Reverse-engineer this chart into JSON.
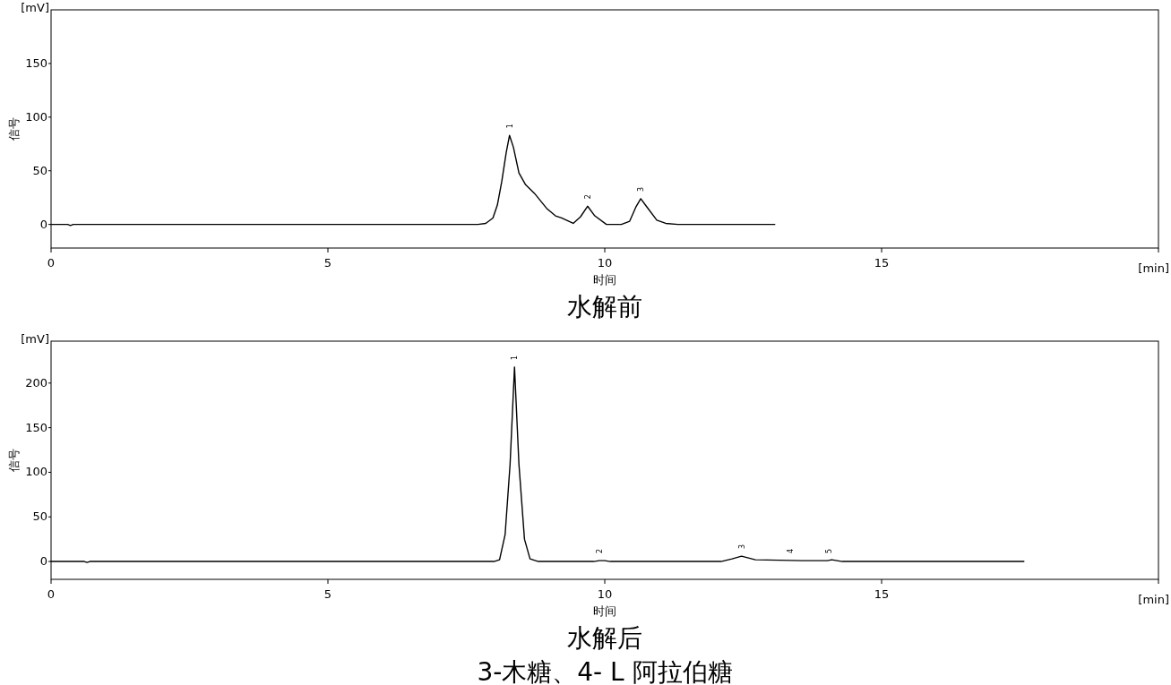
{
  "chart_data": [
    {
      "type": "line",
      "title": "水解前",
      "xlabel": "时间",
      "ylabel": "信号",
      "xlim": [
        0,
        20
      ],
      "ylim": [
        -22,
        200
      ],
      "xticks": [
        0,
        5,
        10,
        15,
        {
          "value": 20,
          "label": null
        }
      ],
      "yticks": [
        0,
        50,
        100,
        150
      ],
      "series": [
        {
          "color": "#000000",
          "x": [
            0,
            0.3,
            0.35,
            0.4,
            7.6,
            7.71,
            7.85,
            7.98,
            8.06,
            8.14,
            8.22,
            8.28,
            8.35,
            8.45,
            8.57,
            8.73,
            8.95,
            9.11,
            9.22,
            9.43,
            9.56,
            9.69,
            9.82,
            10.03,
            10.3,
            10.45,
            10.56,
            10.65,
            10.75,
            10.94,
            11.1,
            11.32,
            13.07
          ],
          "values": [
            0,
            0,
            -1,
            0,
            0,
            0,
            1,
            6,
            18,
            40,
            67,
            83,
            72,
            48,
            37,
            29,
            15,
            8,
            6,
            1,
            7,
            17,
            8,
            0,
            0,
            3,
            16,
            24,
            17,
            4,
            1,
            0,
            0
          ]
        }
      ],
      "annotations": [
        "[mV]",
        "[min]",
        {
          "text": "1",
          "x": 8.28,
          "y": 83
        },
        {
          "text": "2",
          "x": 9.69,
          "y": 17
        },
        {
          "text": "3",
          "x": 10.65,
          "y": 24
        }
      ]
    },
    {
      "type": "line",
      "title": "水解后",
      "xlabel": "时间",
      "ylabel": "信号",
      "xlim": [
        0,
        20
      ],
      "ylim": [
        -20,
        247
      ],
      "xticks": [
        0,
        5,
        10,
        15,
        {
          "value": 20,
          "label": null
        }
      ],
      "yticks": [
        0,
        50,
        100,
        150,
        200
      ],
      "series": [
        {
          "color": "#000000",
          "x": [
            0,
            0.6,
            0.65,
            0.7,
            8.0,
            8.1,
            8.2,
            8.29,
            8.37,
            8.45,
            8.55,
            8.65,
            8.8,
            9.8,
            9.9,
            10.0,
            10.1,
            12.1,
            12.3,
            12.47,
            12.72,
            13.56,
            14.02,
            14.1,
            14.29,
            17.57
          ],
          "values": [
            0,
            0,
            -1,
            0,
            0,
            2,
            30,
            109,
            218,
            109,
            25,
            3,
            0,
            0,
            1,
            1,
            0,
            0,
            3,
            6,
            2,
            1,
            1,
            2,
            0,
            0
          ]
        }
      ],
      "annotations": [
        "[mV]",
        "[min]",
        "3-木糖、4- L 阿拉伯糖",
        {
          "text": "1",
          "x": 8.37,
          "y": 218
        },
        {
          "text": "2",
          "x": 9.9,
          "y": 1
        },
        {
          "text": "3",
          "x": 12.47,
          "y": 6
        },
        {
          "text": "4",
          "x": 13.35,
          "y": 1
        },
        {
          "text": "5",
          "x": 14.05,
          "y": 1
        }
      ]
    }
  ]
}
